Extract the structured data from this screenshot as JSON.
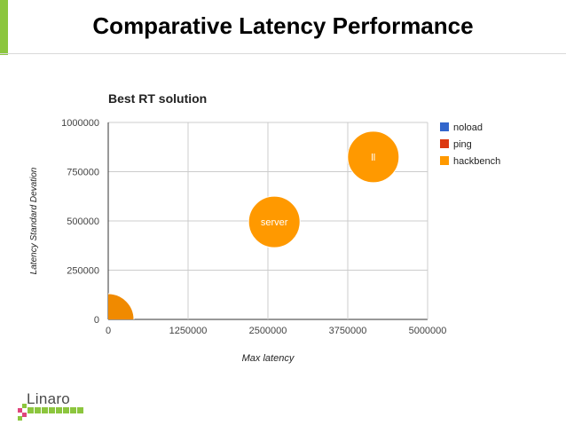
{
  "slide": {
    "title": "Comparative Latency Performance",
    "accent_color": "#8cc63e"
  },
  "chart_data": {
    "type": "bubble",
    "title": "Best RT solution",
    "xlabel": "Max latency",
    "ylabel": "Latency Standard Devation",
    "xlim": [
      0,
      5000000
    ],
    "ylim": [
      0,
      1000000
    ],
    "x_ticks": [
      "0",
      "1250000",
      "2500000",
      "3750000",
      "5000000"
    ],
    "y_ticks": [
      "0",
      "250000",
      "500000",
      "750000",
      "1000000"
    ],
    "grid": true,
    "legend_position": "right",
    "legend": [
      {
        "name": "noload",
        "color": "#3366cc"
      },
      {
        "name": "ping",
        "color": "#dc3912"
      },
      {
        "name": "hackbench",
        "color": "#ff9900"
      }
    ],
    "points": [
      {
        "label": "rt",
        "x": 0,
        "y": 0,
        "size": 1,
        "series": "hackbench",
        "color": "#f08a00",
        "label_visible": false
      },
      {
        "label": "server",
        "x": 2600000,
        "y": 495000,
        "size": 1,
        "series": "hackbench",
        "color": "#ff9900",
        "label_visible": true
      },
      {
        "label": "ll",
        "x": 4150000,
        "y": 825000,
        "size": 1,
        "series": "hackbench",
        "color": "#ff9900",
        "label_visible": true
      }
    ]
  },
  "logo": {
    "text": "Linaro",
    "icon": "linaro-logo-icon"
  }
}
